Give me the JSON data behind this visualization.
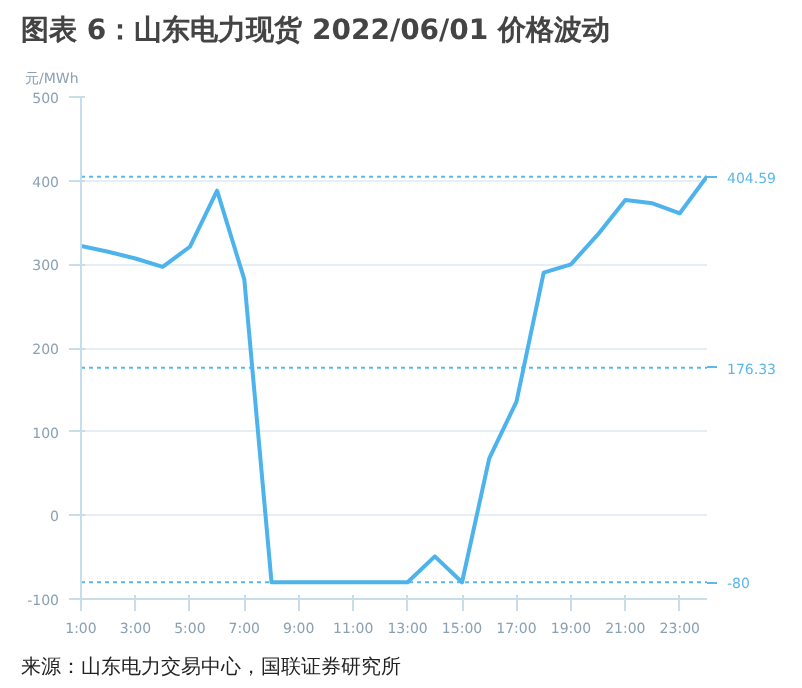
{
  "chart_data": {
    "type": "line",
    "title": "图表 6：山东电力现货 2022/06/01 价格波动",
    "ylabel": "元/MWh",
    "annotations": [
      "来源：山东电力交易中心，国联证券研究所"
    ],
    "x": [
      1,
      2,
      3,
      4,
      5,
      6,
      7,
      8,
      9,
      10,
      11,
      12,
      13,
      14,
      15,
      16,
      17,
      18,
      19,
      20,
      21,
      22,
      23,
      24
    ],
    "series": [
      {
        "color": "#4db3ec",
        "values": [
          322,
          315,
          307,
          297,
          321,
          388,
          282,
          -80,
          -80,
          -80,
          -80,
          -80,
          -80,
          -49,
          -80,
          68,
          136,
          290,
          300,
          336,
          377,
          373,
          361,
          405
        ]
      }
    ],
    "xlim": [
      1,
      24
    ],
    "xticks": [
      {
        "value": 1,
        "label": "1:00"
      },
      {
        "value": 3,
        "label": "3:00"
      },
      {
        "value": 5,
        "label": "5:00"
      },
      {
        "value": 7,
        "label": "7:00"
      },
      {
        "value": 9,
        "label": "9:00"
      },
      {
        "value": 11,
        "label": "11:00"
      },
      {
        "value": 13,
        "label": "13:00"
      },
      {
        "value": 15,
        "label": "15:00"
      },
      {
        "value": 17,
        "label": "17:00"
      },
      {
        "value": 19,
        "label": "19:00"
      },
      {
        "value": 21,
        "label": "21:00"
      },
      {
        "value": 23,
        "label": "23:00"
      }
    ],
    "ylim": [
      -100,
      500
    ],
    "yticks": [
      -100,
      0,
      100,
      200,
      300,
      400,
      500
    ],
    "ref_lines": [
      {
        "axis": "y",
        "value": 404.59,
        "label": "404.59",
        "color": "#5bb8e8",
        "line_style": "dotted"
      },
      {
        "axis": "y",
        "value": 176.33,
        "label": "176.33",
        "color": "#5bb8e8",
        "line_style": "dotted"
      },
      {
        "axis": "y",
        "value": -80,
        "label": "-80",
        "color": "#5bb8e8",
        "line_style": "dotted"
      }
    ],
    "grid": "y",
    "marker": "none",
    "line_style": "solid"
  }
}
